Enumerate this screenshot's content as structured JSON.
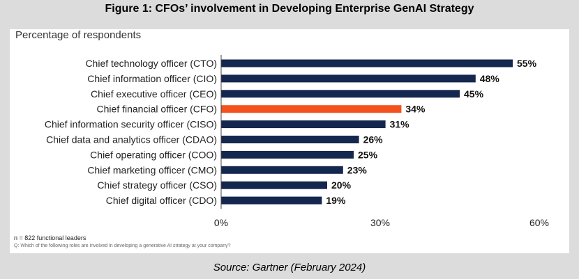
{
  "figure_title": "Figure 1: CFOs’ involvement in Developing Enterprise GenAI Strategy",
  "source": "Source: Gartner (February 2024)",
  "colors": {
    "bar": "#14274e",
    "highlight": "#f4511e",
    "axis": "#444444"
  },
  "chart_data": {
    "type": "bar",
    "orientation": "horizontal",
    "title": "Percentage of respondents",
    "categories": [
      "Chief technology officer (CTO)",
      "Chief information officer (CIO)",
      "Chief executive officer (CEO)",
      "Chief financial officer (CFO)",
      "Chief information security officer (CISO)",
      "Chief data and analytics officer (CDAO)",
      "Chief operating officer (COO)",
      "Chief marketing officer (CMO)",
      "Chief strategy officer (CSO)",
      "Chief digital officer (CDO)"
    ],
    "values": [
      55,
      48,
      45,
      34,
      31,
      26,
      25,
      23,
      20,
      19
    ],
    "value_labels": [
      "55%",
      "48%",
      "45%",
      "34%",
      "31%",
      "26%",
      "25%",
      "23%",
      "20%",
      "19%"
    ],
    "highlight_category": "Chief financial officer (CFO)",
    "xlim": [
      0,
      60
    ],
    "xticks": [
      0,
      30,
      60
    ],
    "xtick_labels": [
      "0%",
      "30%",
      "60%"
    ],
    "grid": false,
    "legend": "none"
  },
  "footnotes": {
    "n": "n = 822 functional leaders",
    "question": "Q: Which of the following roles are involved in developing a generative AI strategy at your company?"
  }
}
